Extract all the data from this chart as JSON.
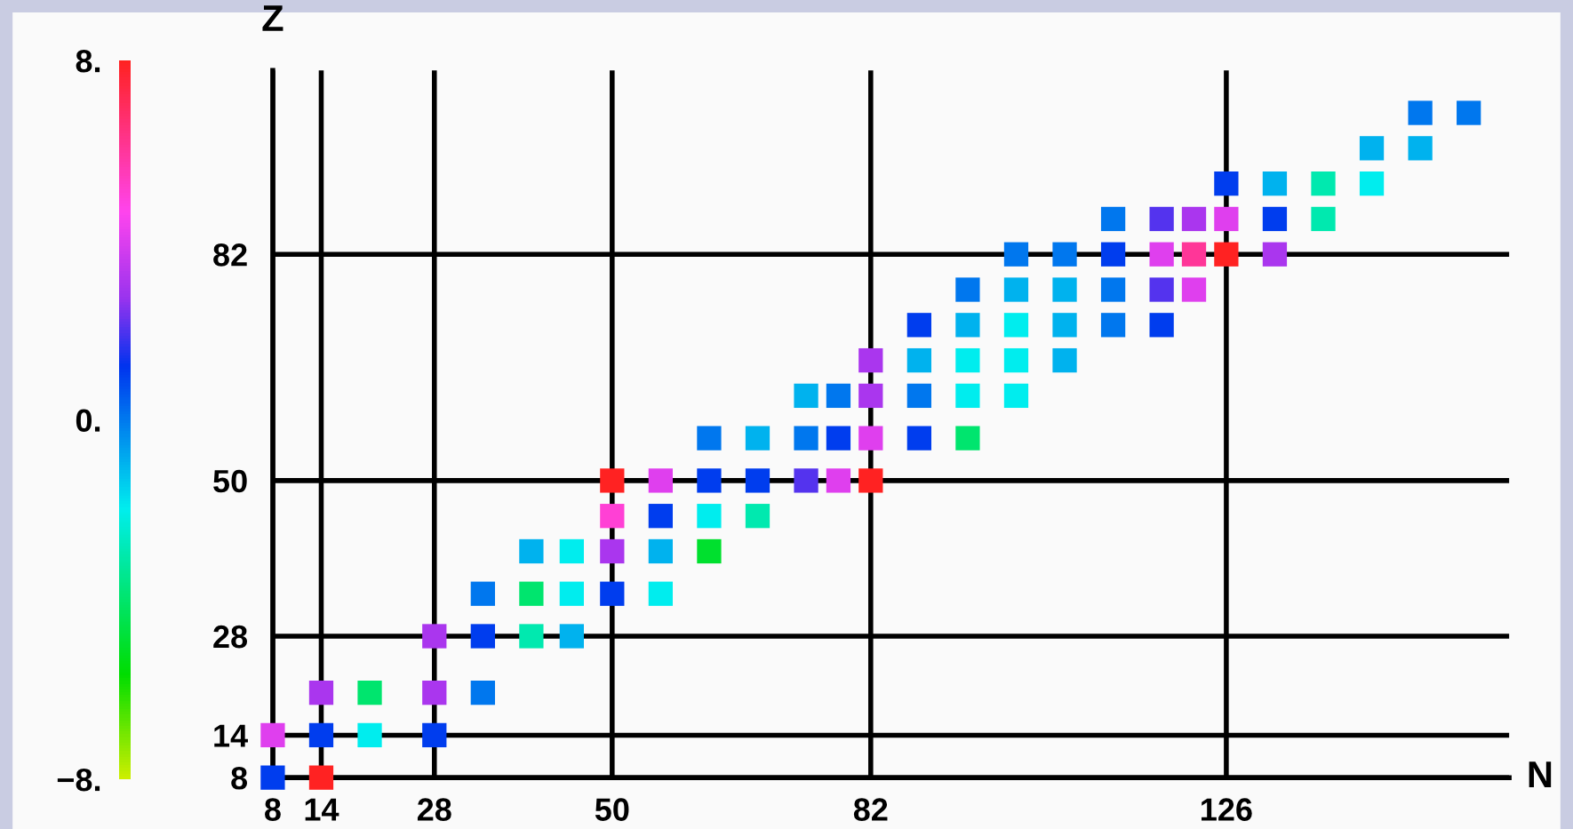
{
  "chart_data": {
    "type": "scatter",
    "xlabel": "N",
    "ylabel": "Z",
    "marker": "square",
    "grid": true,
    "xlim": [
      8,
      161
    ],
    "xticks": [
      8,
      14,
      28,
      50,
      82,
      126
    ],
    "ylim": [
      8,
      108
    ],
    "yticks": [
      8,
      14,
      28,
      50,
      82
    ],
    "clim": [
      -8,
      8
    ],
    "cticks": [
      {
        "value": -8,
        "label": "−8."
      },
      {
        "value": 0,
        "label": "0."
      },
      {
        "value": 8,
        "label": "8."
      }
    ],
    "x": [
      8,
      8,
      14,
      14,
      14,
      20,
      20,
      28,
      28,
      28,
      34,
      34,
      34,
      40,
      40,
      40,
      45,
      45,
      45,
      50,
      50,
      50,
      50,
      56,
      56,
      56,
      56,
      62,
      62,
      62,
      62,
      68,
      68,
      68,
      74,
      74,
      74,
      78,
      78,
      78,
      82,
      82,
      82,
      82,
      88,
      88,
      88,
      88,
      94,
      94,
      94,
      94,
      94,
      100,
      100,
      100,
      100,
      100,
      106,
      106,
      106,
      106,
      112,
      112,
      112,
      112,
      118,
      118,
      118,
      118,
      122,
      122,
      122,
      126,
      126,
      126,
      132,
      132,
      132,
      138,
      138,
      144,
      144,
      150,
      150,
      156
    ],
    "values": [
      8,
      14,
      8,
      14,
      20,
      14,
      20,
      14,
      20,
      28,
      20,
      28,
      34,
      28,
      34,
      40,
      28,
      34,
      40,
      34,
      40,
      45,
      50,
      34,
      40,
      45,
      50,
      40,
      45,
      50,
      56,
      45,
      50,
      56,
      50,
      56,
      62,
      50,
      56,
      62,
      50,
      56,
      62,
      67,
      56,
      62,
      67,
      72,
      56,
      62,
      67,
      72,
      77,
      62,
      67,
      72,
      77,
      82,
      67,
      72,
      77,
      82,
      72,
      77,
      82,
      87,
      72,
      77,
      82,
      87,
      77,
      82,
      87,
      82,
      87,
      92,
      82,
      87,
      92,
      87,
      92,
      92,
      97,
      97,
      102,
      102
    ],
    "cvalues": [
      1,
      4,
      8,
      1,
      3,
      -2,
      -4,
      1,
      3,
      3,
      0,
      1,
      0,
      -3,
      -4,
      -1,
      -1,
      -2,
      -2,
      1,
      3,
      5,
      8,
      -2,
      -1,
      1,
      4,
      -5,
      -2,
      1,
      0,
      -3,
      1,
      -1,
      2,
      0,
      -1,
      4,
      1,
      0,
      8,
      4,
      3,
      3,
      1,
      0,
      -1,
      1,
      -4,
      -2,
      -2,
      -1,
      0,
      -2,
      -2,
      -2,
      -1,
      0,
      -1,
      -1,
      -1,
      0,
      0,
      0,
      1,
      0,
      1,
      2,
      4,
      2,
      4,
      6,
      3,
      8,
      4,
      1,
      3,
      1,
      -1,
      -3,
      -3,
      -2,
      -1,
      -1,
      0,
      0
    ]
  }
}
